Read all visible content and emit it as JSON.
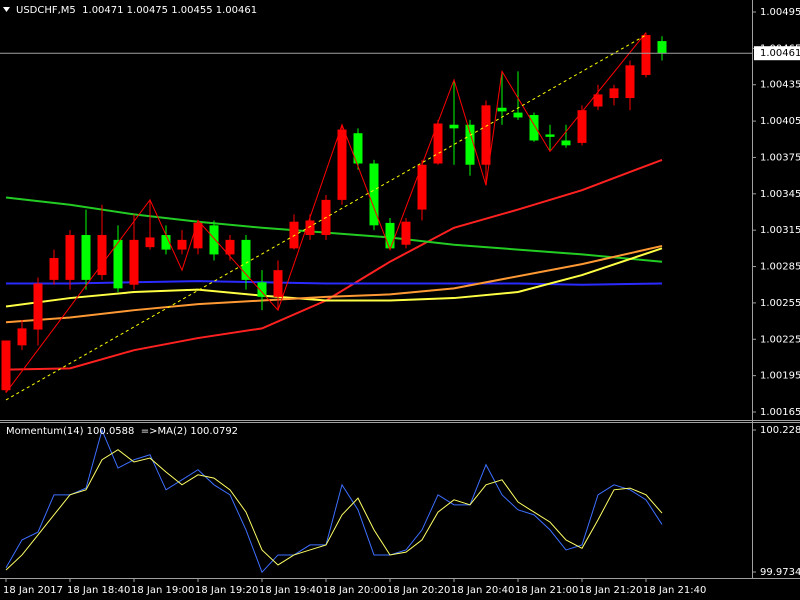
{
  "chart_data": [
    {
      "type": "candlestick",
      "title": "USDCHF,M5  1.00471 1.00475 1.00455 1.00461",
      "categories": [
        "18 Jan 2017",
        null,
        null,
        null,
        "18 Jan 18:40",
        null,
        null,
        null,
        "18 Jan 19:00",
        null,
        null,
        null,
        "18 Jan 19:20",
        null,
        null,
        null,
        "18 Jan 19:40",
        null,
        null,
        null,
        "18 Jan 20:00",
        null,
        null,
        null,
        "18 Jan 20:20",
        null,
        null,
        null,
        "18 Jan 20:40",
        null,
        null,
        null,
        "18 Jan 21:00",
        null,
        null,
        null,
        "18 Jan 21:20",
        null,
        null,
        null,
        "18 Jan 21:40",
        null
      ],
      "open": [
        1.00183,
        1.0022,
        1.00233,
        1.00274,
        1.00274,
        1.00311,
        1.00278,
        1.00307,
        1.0027,
        1.00301,
        1.00311,
        1.00299,
        1.003,
        1.00319,
        1.00295,
        1.00307,
        1.00272,
        1.0026,
        1.003,
        1.00311,
        1.00311,
        1.0034,
        1.00395,
        1.0037,
        1.00321,
        1.00303,
        1.00332,
        1.0037,
        1.00402,
        1.00402,
        1.00369,
        1.00416,
        1.00412,
        1.0041,
        1.00394,
        1.00389,
        1.00387,
        1.00417,
        1.00424,
        1.00424,
        1.00443,
        1.00471
      ],
      "high": [
        1.00224,
        1.00241,
        1.00276,
        1.00299,
        1.00315,
        1.00332,
        1.00336,
        1.00319,
        1.00328,
        1.0034,
        1.00319,
        1.00315,
        1.00323,
        1.00323,
        1.00311,
        1.00311,
        1.00282,
        1.0029,
        1.00328,
        1.00328,
        1.00344,
        1.00402,
        1.00399,
        1.00373,
        1.00325,
        1.00325,
        1.00373,
        1.00406,
        1.00439,
        1.00406,
        1.00422,
        1.00446,
        1.00446,
        1.00412,
        1.00402,
        1.00402,
        1.00418,
        1.00435,
        1.00435,
        1.00455,
        1.00478,
        1.00475
      ],
      "low": [
        1.00181,
        1.00216,
        1.0022,
        1.0027,
        1.00266,
        1.00266,
        1.00274,
        1.00264,
        1.00266,
        1.00299,
        1.00295,
        1.00295,
        1.00295,
        1.0029,
        1.0029,
        1.00266,
        1.00249,
        1.00249,
        1.00299,
        1.00307,
        1.00307,
        1.00336,
        1.00365,
        1.00315,
        1.00299,
        1.003,
        1.00323,
        1.00369,
        1.00369,
        1.0036,
        1.00352,
        1.00402,
        1.00406,
        1.00388,
        1.00381,
        1.00383,
        1.00385,
        1.00414,
        1.00418,
        1.00414,
        1.00441,
        1.00455
      ],
      "close": [
        1.00224,
        1.00234,
        1.00271,
        1.00292,
        1.00311,
        1.00274,
        1.00311,
        1.00267,
        1.00307,
        1.00309,
        1.00299,
        1.00307,
        1.00321,
        1.00295,
        1.00307,
        1.00274,
        1.0026,
        1.00282,
        1.00322,
        1.00323,
        1.0034,
        1.00398,
        1.0037,
        1.00319,
        1.003,
        1.00322,
        1.00369,
        1.00403,
        1.00399,
        1.00369,
        1.00418,
        1.00413,
        1.00408,
        1.00389,
        1.00392,
        1.00385,
        1.00414,
        1.00427,
        1.00432,
        1.00451,
        1.00476,
        1.00461
      ],
      "up_color": "#ff0000",
      "down_color": "#00ff00",
      "overlays": [
        {
          "color": "#ff2020",
          "width": 2,
          "x": [
            0,
            4,
            8,
            12,
            16,
            20,
            24,
            28,
            32,
            36,
            41
          ],
          "values": [
            1.002,
            1.00201,
            1.00216,
            1.00226,
            1.00234,
            1.00257,
            1.00289,
            1.00317,
            1.00332,
            1.00348,
            1.00373
          ]
        },
        {
          "color": "#22cc22",
          "width": 2,
          "x": [
            0,
            4,
            8,
            12,
            16,
            20,
            24,
            28,
            32,
            36,
            41
          ],
          "values": [
            1.00342,
            1.00336,
            1.00328,
            1.00322,
            1.00317,
            1.00313,
            1.00309,
            1.00303,
            1.00299,
            1.00295,
            1.00289
          ]
        },
        {
          "color": "#2a2aff",
          "width": 2,
          "x": [
            0,
            4,
            8,
            12,
            16,
            20,
            24,
            28,
            32,
            36,
            41
          ],
          "values": [
            1.00271,
            1.00271,
            1.00272,
            1.00273,
            1.00272,
            1.00271,
            1.00271,
            1.00271,
            1.00271,
            1.0027,
            1.00271
          ]
        },
        {
          "color": "#ffff44",
          "width": 2,
          "x": [
            0,
            4,
            8,
            12,
            16,
            20,
            24,
            28,
            32,
            36,
            41
          ],
          "values": [
            1.00252,
            1.00259,
            1.00264,
            1.00266,
            1.00261,
            1.00257,
            1.00257,
            1.00259,
            1.00264,
            1.00278,
            1.003
          ]
        },
        {
          "color": "#ff9933",
          "width": 2,
          "x": [
            0,
            4,
            8,
            12,
            16,
            20,
            24,
            28,
            32,
            36,
            41
          ],
          "values": [
            1.00239,
            1.00243,
            1.00249,
            1.00254,
            1.00257,
            1.0026,
            1.00262,
            1.00267,
            1.00277,
            1.00287,
            1.00302
          ]
        },
        {
          "color": "#ff0000",
          "width": 1,
          "x": [
            0,
            9,
            11,
            12,
            17,
            21,
            24,
            28,
            30,
            31,
            34,
            40
          ],
          "values": [
            1.00181,
            1.0034,
            1.00282,
            1.00323,
            1.00249,
            1.00402,
            1.00299,
            1.00439,
            1.00352,
            1.00446,
            1.0038,
            1.00478
          ]
        },
        {
          "color": "#ffff00",
          "width": 1,
          "dashed": true,
          "x": [
            0,
            40
          ],
          "values": [
            1.00175,
            1.00476
          ]
        }
      ],
      "current_price": 1.00461,
      "ylim": [
        1.00165,
        1.00495
      ],
      "yticks": [
        1.00165,
        1.00195,
        1.00225,
        1.00255,
        1.00285,
        1.00315,
        1.00345,
        1.00375,
        1.00405,
        1.00435,
        1.00465,
        1.00495
      ]
    },
    {
      "type": "line",
      "title": "Momentum(14) 100.0588  =>MA(2) 100.0792",
      "series": [
        {
          "color": "#3d6fff",
          "values": [
            99.981,
            100.031,
            100.045,
            100.112,
            100.112,
            100.124,
            100.228,
            100.16,
            100.175,
            100.184,
            100.121,
            100.139,
            100.157,
            100.13,
            100.112,
            100.049,
            99.973,
            100.004,
            100.004,
            100.022,
            100.022,
            100.13,
            100.085,
            100.004,
            100.004,
            100.013,
            100.049,
            100.112,
            100.094,
            100.094,
            100.166,
            100.112,
            100.085,
            100.076,
            100.049,
            100.013,
            100.022,
            100.112,
            100.13,
            100.121,
            100.103,
            100.0588
          ]
        },
        {
          "color": "#ffff66",
          "values": [
            99.977,
            100.004,
            100.04,
            100.076,
            100.112,
            100.121,
            100.175,
            100.193,
            100.171,
            100.178,
            100.153,
            100.13,
            100.148,
            100.142,
            100.121,
            100.081,
            100.013,
            99.986,
            100.004,
            100.013,
            100.022,
            100.076,
            100.106,
            100.049,
            100.004,
            100.009,
            100.031,
            100.081,
            100.103,
            100.094,
            100.13,
            100.139,
            100.099,
            100.081,
            100.063,
            100.031,
            100.016,
            100.067,
            100.121,
            100.124,
            100.112,
            100.0792
          ]
        }
      ],
      "ylim": [
        99.9734,
        100.2284
      ],
      "yticks": [
        99.9734,
        100.2284
      ]
    }
  ]
}
